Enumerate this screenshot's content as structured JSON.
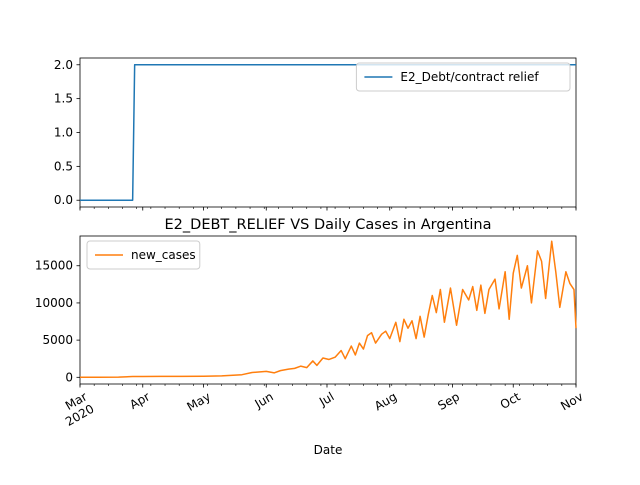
{
  "chart_data": [
    {
      "type": "line",
      "title": "",
      "xlabel": "",
      "ylabel": "",
      "xlim": [
        "2020-03-01",
        "2020-11-01"
      ],
      "ylim": [
        -0.1,
        2.1
      ],
      "yticks": [
        "0.0",
        "0.5",
        "1.0",
        "1.5",
        "2.0"
      ],
      "legend_position": "top-right",
      "grid": false,
      "series": [
        {
          "name": "E2_Debt/contract relief",
          "color": "#1f77b4",
          "points": [
            [
              "2020-03-01",
              0
            ],
            [
              "2020-03-27",
              0
            ],
            [
              "2020-03-28",
              2
            ],
            [
              "2020-11-01",
              2
            ]
          ]
        }
      ]
    },
    {
      "type": "line",
      "title": "E2_DEBT_RELIEF VS Daily Cases in Argentina",
      "xlabel": "Date",
      "ylabel": "",
      "xlim": [
        "2020-03-01",
        "2020-11-01"
      ],
      "ylim": [
        -900,
        19000
      ],
      "yticks": [
        "0",
        "5000",
        "10000",
        "15000"
      ],
      "x_tick_labels": [
        {
          "month": "Mar",
          "year": "2020",
          "date": "2020-03-01"
        },
        {
          "month": "Apr",
          "year": "",
          "date": "2020-04-01"
        },
        {
          "month": "May",
          "year": "",
          "date": "2020-05-01"
        },
        {
          "month": "Jun",
          "year": "",
          "date": "2020-06-01"
        },
        {
          "month": "Jul",
          "year": "",
          "date": "2020-07-01"
        },
        {
          "month": "Aug",
          "year": "",
          "date": "2020-08-01"
        },
        {
          "month": "Sep",
          "year": "",
          "date": "2020-09-01"
        },
        {
          "month": "Oct",
          "year": "",
          "date": "2020-10-01"
        },
        {
          "month": "Nov",
          "year": "",
          "date": "2020-11-01"
        }
      ],
      "legend_position": "top-left",
      "grid": false,
      "series": [
        {
          "name": "new_cases",
          "color": "#ff7f0e",
          "points": [
            [
              "2020-03-01",
              0
            ],
            [
              "2020-03-10",
              5
            ],
            [
              "2020-03-20",
              30
            ],
            [
              "2020-03-27",
              100
            ],
            [
              "2020-04-01",
              110
            ],
            [
              "2020-04-10",
              120
            ],
            [
              "2020-04-20",
              130
            ],
            [
              "2020-05-01",
              140
            ],
            [
              "2020-05-10",
              200
            ],
            [
              "2020-05-20",
              350
            ],
            [
              "2020-05-25",
              650
            ],
            [
              "2020-06-01",
              800
            ],
            [
              "2020-06-05",
              600
            ],
            [
              "2020-06-08",
              900
            ],
            [
              "2020-06-12",
              1100
            ],
            [
              "2020-06-15",
              1200
            ],
            [
              "2020-06-18",
              1500
            ],
            [
              "2020-06-21",
              1300
            ],
            [
              "2020-06-24",
              2200
            ],
            [
              "2020-06-26",
              1600
            ],
            [
              "2020-06-29",
              2600
            ],
            [
              "2020-07-02",
              2400
            ],
            [
              "2020-07-05",
              2700
            ],
            [
              "2020-07-08",
              3600
            ],
            [
              "2020-07-10",
              2500
            ],
            [
              "2020-07-13",
              4200
            ],
            [
              "2020-07-15",
              3000
            ],
            [
              "2020-07-17",
              4600
            ],
            [
              "2020-07-19",
              3800
            ],
            [
              "2020-07-21",
              5600
            ],
            [
              "2020-07-23",
              6000
            ],
            [
              "2020-07-25",
              4600
            ],
            [
              "2020-07-28",
              5800
            ],
            [
              "2020-07-30",
              6200
            ],
            [
              "2020-08-01",
              5200
            ],
            [
              "2020-08-04",
              7400
            ],
            [
              "2020-08-06",
              4800
            ],
            [
              "2020-08-08",
              7800
            ],
            [
              "2020-08-10",
              6600
            ],
            [
              "2020-08-12",
              7600
            ],
            [
              "2020-08-14",
              5200
            ],
            [
              "2020-08-16",
              8200
            ],
            [
              "2020-08-18",
              5400
            ],
            [
              "2020-08-20",
              8400
            ],
            [
              "2020-08-22",
              11000
            ],
            [
              "2020-08-24",
              8700
            ],
            [
              "2020-08-26",
              11800
            ],
            [
              "2020-08-28",
              7400
            ],
            [
              "2020-08-31",
              12000
            ],
            [
              "2020-09-03",
              7000
            ],
            [
              "2020-09-06",
              11800
            ],
            [
              "2020-09-09",
              10400
            ],
            [
              "2020-09-11",
              12200
            ],
            [
              "2020-09-13",
              9000
            ],
            [
              "2020-09-15",
              12400
            ],
            [
              "2020-09-17",
              8600
            ],
            [
              "2020-09-19",
              11800
            ],
            [
              "2020-09-22",
              13200
            ],
            [
              "2020-09-24",
              9200
            ],
            [
              "2020-09-27",
              14200
            ],
            [
              "2020-09-29",
              7800
            ],
            [
              "2020-10-01",
              14000
            ],
            [
              "2020-10-03",
              16400
            ],
            [
              "2020-10-05",
              12000
            ],
            [
              "2020-10-08",
              15000
            ],
            [
              "2020-10-10",
              10000
            ],
            [
              "2020-10-13",
              17000
            ],
            [
              "2020-10-15",
              15600
            ],
            [
              "2020-10-17",
              10600
            ],
            [
              "2020-10-20",
              18300
            ],
            [
              "2020-10-22",
              14200
            ],
            [
              "2020-10-24",
              9400
            ],
            [
              "2020-10-27",
              14200
            ],
            [
              "2020-10-29",
              12600
            ],
            [
              "2020-10-31",
              11800
            ],
            [
              "2020-11-01",
              6600
            ]
          ]
        }
      ]
    }
  ]
}
